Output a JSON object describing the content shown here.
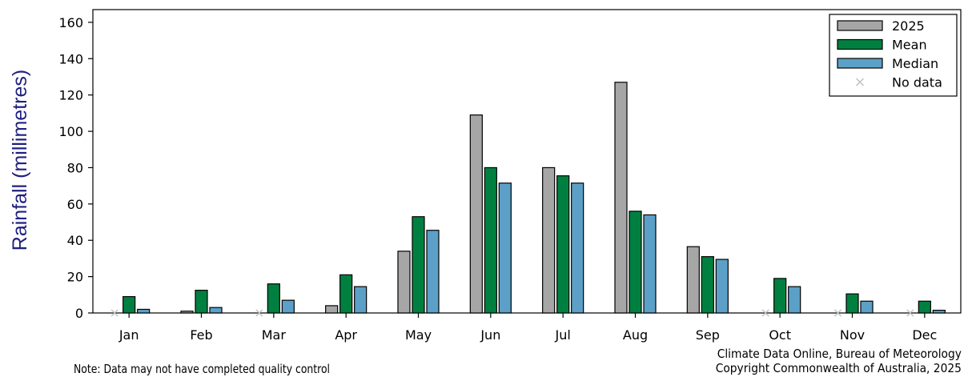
{
  "chart_data": {
    "type": "bar",
    "ylabel": "Rainfall (millimetres)",
    "ylim": [
      0,
      167
    ],
    "yticks": [
      0,
      20,
      40,
      60,
      80,
      100,
      120,
      140,
      160
    ],
    "categories": [
      "Jan",
      "Feb",
      "Mar",
      "Apr",
      "May",
      "Jun",
      "Jul",
      "Aug",
      "Sep",
      "Oct",
      "Nov",
      "Dec"
    ],
    "series": [
      {
        "name": "2025",
        "color": "#a6a6a6",
        "values": [
          null,
          1,
          null,
          4,
          34,
          109,
          80,
          127,
          36.5,
          null,
          null,
          null
        ]
      },
      {
        "name": "Mean",
        "color": "#008040",
        "values": [
          9,
          12.5,
          16,
          21,
          53,
          80,
          75.5,
          56,
          31,
          19,
          10.5,
          6.5
        ]
      },
      {
        "name": "Median",
        "color": "#5ca0c8",
        "values": [
          2,
          3,
          7,
          14.5,
          45.5,
          71.5,
          71.5,
          54,
          29.5,
          14.5,
          6.5,
          1.5
        ]
      }
    ],
    "no_data_label": "No data",
    "no_data_color": "#c0c0c0",
    "legend_position": "top-right",
    "grid": false
  },
  "footer": {
    "note": "Note: Data may not have completed quality control",
    "credit_line1": "Climate Data Online, Bureau of Meteorology",
    "credit_line2": "Copyright Commonwealth of Australia, 2025"
  }
}
